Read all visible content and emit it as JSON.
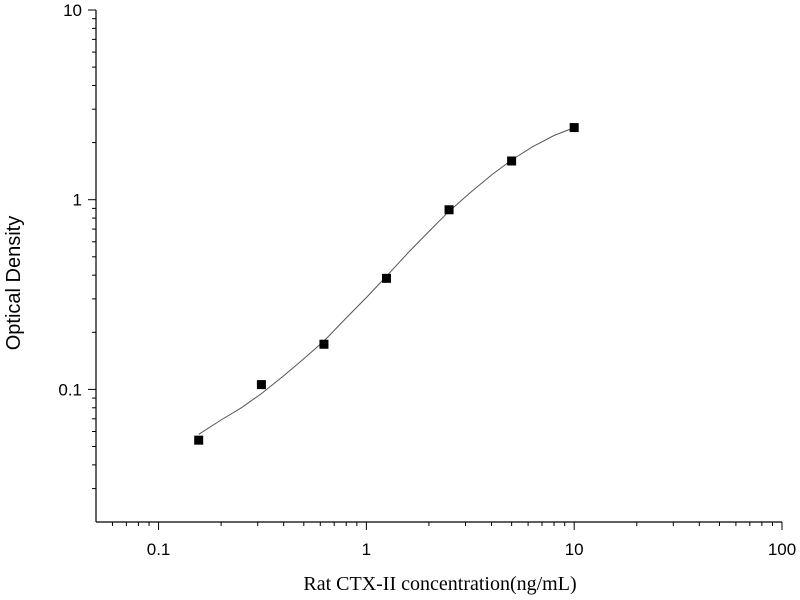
{
  "chart_data": {
    "type": "scatter",
    "xlabel": "Rat CTX-II  concentration(ng/mL)",
    "ylabel": "Optical Density",
    "x_scale": "log",
    "y_scale": "log",
    "xlim": [
      0.05,
      100
    ],
    "ylim": [
      0.02,
      10
    ],
    "x_ticks": [
      0.1,
      1,
      10,
      100
    ],
    "x_tick_labels": [
      "0.1",
      "1",
      "10",
      "100"
    ],
    "y_ticks": [
      0.1,
      1,
      10
    ],
    "y_tick_labels": [
      "0.1",
      "1",
      "10"
    ],
    "grid": false,
    "series": [
      {
        "type": "scatter",
        "marker": "square",
        "color": "#000000",
        "x": [
          0.156,
          0.3125,
          0.625,
          1.25,
          2.5,
          5,
          10
        ],
        "y": [
          0.054,
          0.106,
          0.173,
          0.385,
          0.885,
          1.6,
          2.4
        ]
      },
      {
        "type": "line",
        "color": "#555555",
        "x": [
          0.156,
          0.2,
          0.25,
          0.3125,
          0.4,
          0.5,
          0.625,
          0.8,
          1,
          1.25,
          1.6,
          2,
          2.5,
          3.2,
          4,
          5,
          6.3,
          8,
          10
        ],
        "y": [
          0.058,
          0.069,
          0.08,
          0.095,
          0.118,
          0.145,
          0.18,
          0.238,
          0.305,
          0.395,
          0.53,
          0.68,
          0.87,
          1.1,
          1.35,
          1.62,
          1.9,
          2.18,
          2.4
        ]
      }
    ]
  }
}
